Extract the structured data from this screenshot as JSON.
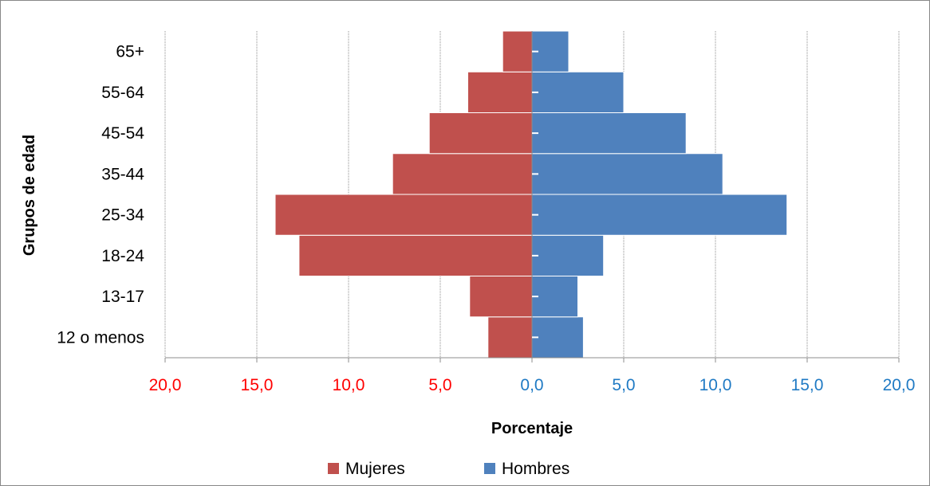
{
  "chart_data": {
    "type": "bar",
    "orientation": "horizontal",
    "subtype": "population-pyramid",
    "categories": [
      "12 o menos",
      "13-17",
      "18-24",
      "25-34",
      "35-44",
      "45-54",
      "55-64",
      "65+"
    ],
    "series": [
      {
        "name": "Mujeres",
        "color": "#c0504d",
        "values": [
          2.4,
          3.4,
          12.7,
          14.0,
          7.6,
          5.6,
          3.5,
          1.6
        ]
      },
      {
        "name": "Hombres",
        "color": "#4f81bd",
        "values": [
          2.8,
          2.5,
          3.9,
          13.9,
          10.4,
          8.4,
          5.0,
          2.0
        ]
      }
    ],
    "xlabel": "Porcentaje",
    "ylabel": "Grupos de edad",
    "xlim": [
      -20,
      20
    ],
    "x_ticks": [
      {
        "value": -20,
        "label": "20,0"
      },
      {
        "value": -15,
        "label": "15,0"
      },
      {
        "value": -10,
        "label": "10,0"
      },
      {
        "value": -5,
        "label": "5,0"
      },
      {
        "value": 0,
        "label": "0,0"
      },
      {
        "value": 5,
        "label": "5,0"
      },
      {
        "value": 10,
        "label": "10,0"
      },
      {
        "value": 15,
        "label": "15,0"
      },
      {
        "value": 20,
        "label": "20,0"
      }
    ],
    "tick_label_colors": {
      "negative": "#ff0000",
      "positive": "#1f7ac4"
    },
    "grid": true,
    "legend_position": "bottom"
  }
}
